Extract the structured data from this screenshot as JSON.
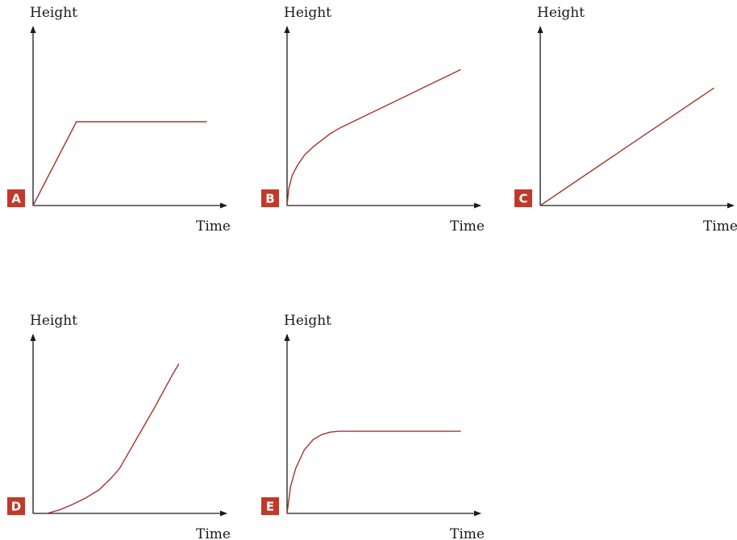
{
  "colors": {
    "curve": "#a8322d",
    "badge": "#c0392b",
    "axis": "#1a1a1a",
    "badge_text": "#ffffff"
  },
  "chart_data": [
    {
      "type": "line",
      "panel": "A",
      "xlabel": "Time",
      "ylabel": "Height",
      "xlim": [
        0,
        100
      ],
      "ylim": [
        0,
        100
      ],
      "grid": false,
      "series": [
        {
          "x": [
            0,
            25,
            100
          ],
          "y": [
            0,
            50,
            50
          ]
        }
      ]
    },
    {
      "type": "line",
      "panel": "B",
      "xlabel": "Time",
      "ylabel": "Height",
      "xlim": [
        0,
        100
      ],
      "ylim": [
        0,
        100
      ],
      "grid": false,
      "series": [
        {
          "x": [
            0,
            1,
            3,
            6,
            10,
            15,
            20,
            25,
            30,
            40,
            50,
            60,
            70,
            80,
            90,
            100
          ],
          "y": [
            0,
            10,
            18,
            24,
            30,
            35,
            39,
            43,
            46,
            51,
            56,
            61,
            66,
            71,
            76,
            81
          ]
        }
      ]
    },
    {
      "type": "line",
      "panel": "C",
      "xlabel": "Time",
      "ylabel": "Height",
      "xlim": [
        0,
        100
      ],
      "ylim": [
        0,
        100
      ],
      "grid": false,
      "series": [
        {
          "x": [
            0,
            100
          ],
          "y": [
            0,
            70
          ]
        }
      ]
    },
    {
      "type": "line",
      "panel": "D",
      "xlabel": "Time",
      "ylabel": "Height",
      "xlim": [
        0,
        100
      ],
      "ylim": [
        0,
        100
      ],
      "grid": false,
      "series": [
        {
          "x": [
            8,
            15,
            22,
            30,
            38,
            45,
            50,
            60,
            70,
            80,
            84
          ],
          "y": [
            0,
            2,
            5,
            9,
            14,
            21,
            27,
            45,
            63,
            82,
            89
          ]
        }
      ]
    },
    {
      "type": "line",
      "panel": "E",
      "xlabel": "Time",
      "ylabel": "Height",
      "xlim": [
        0,
        100
      ],
      "ylim": [
        0,
        100
      ],
      "grid": false,
      "series": [
        {
          "x": [
            0,
            2,
            5,
            10,
            15,
            20,
            25,
            30,
            40,
            100
          ],
          "y": [
            0,
            16,
            27,
            38,
            44,
            47,
            48.5,
            49,
            49,
            49
          ]
        }
      ]
    }
  ]
}
